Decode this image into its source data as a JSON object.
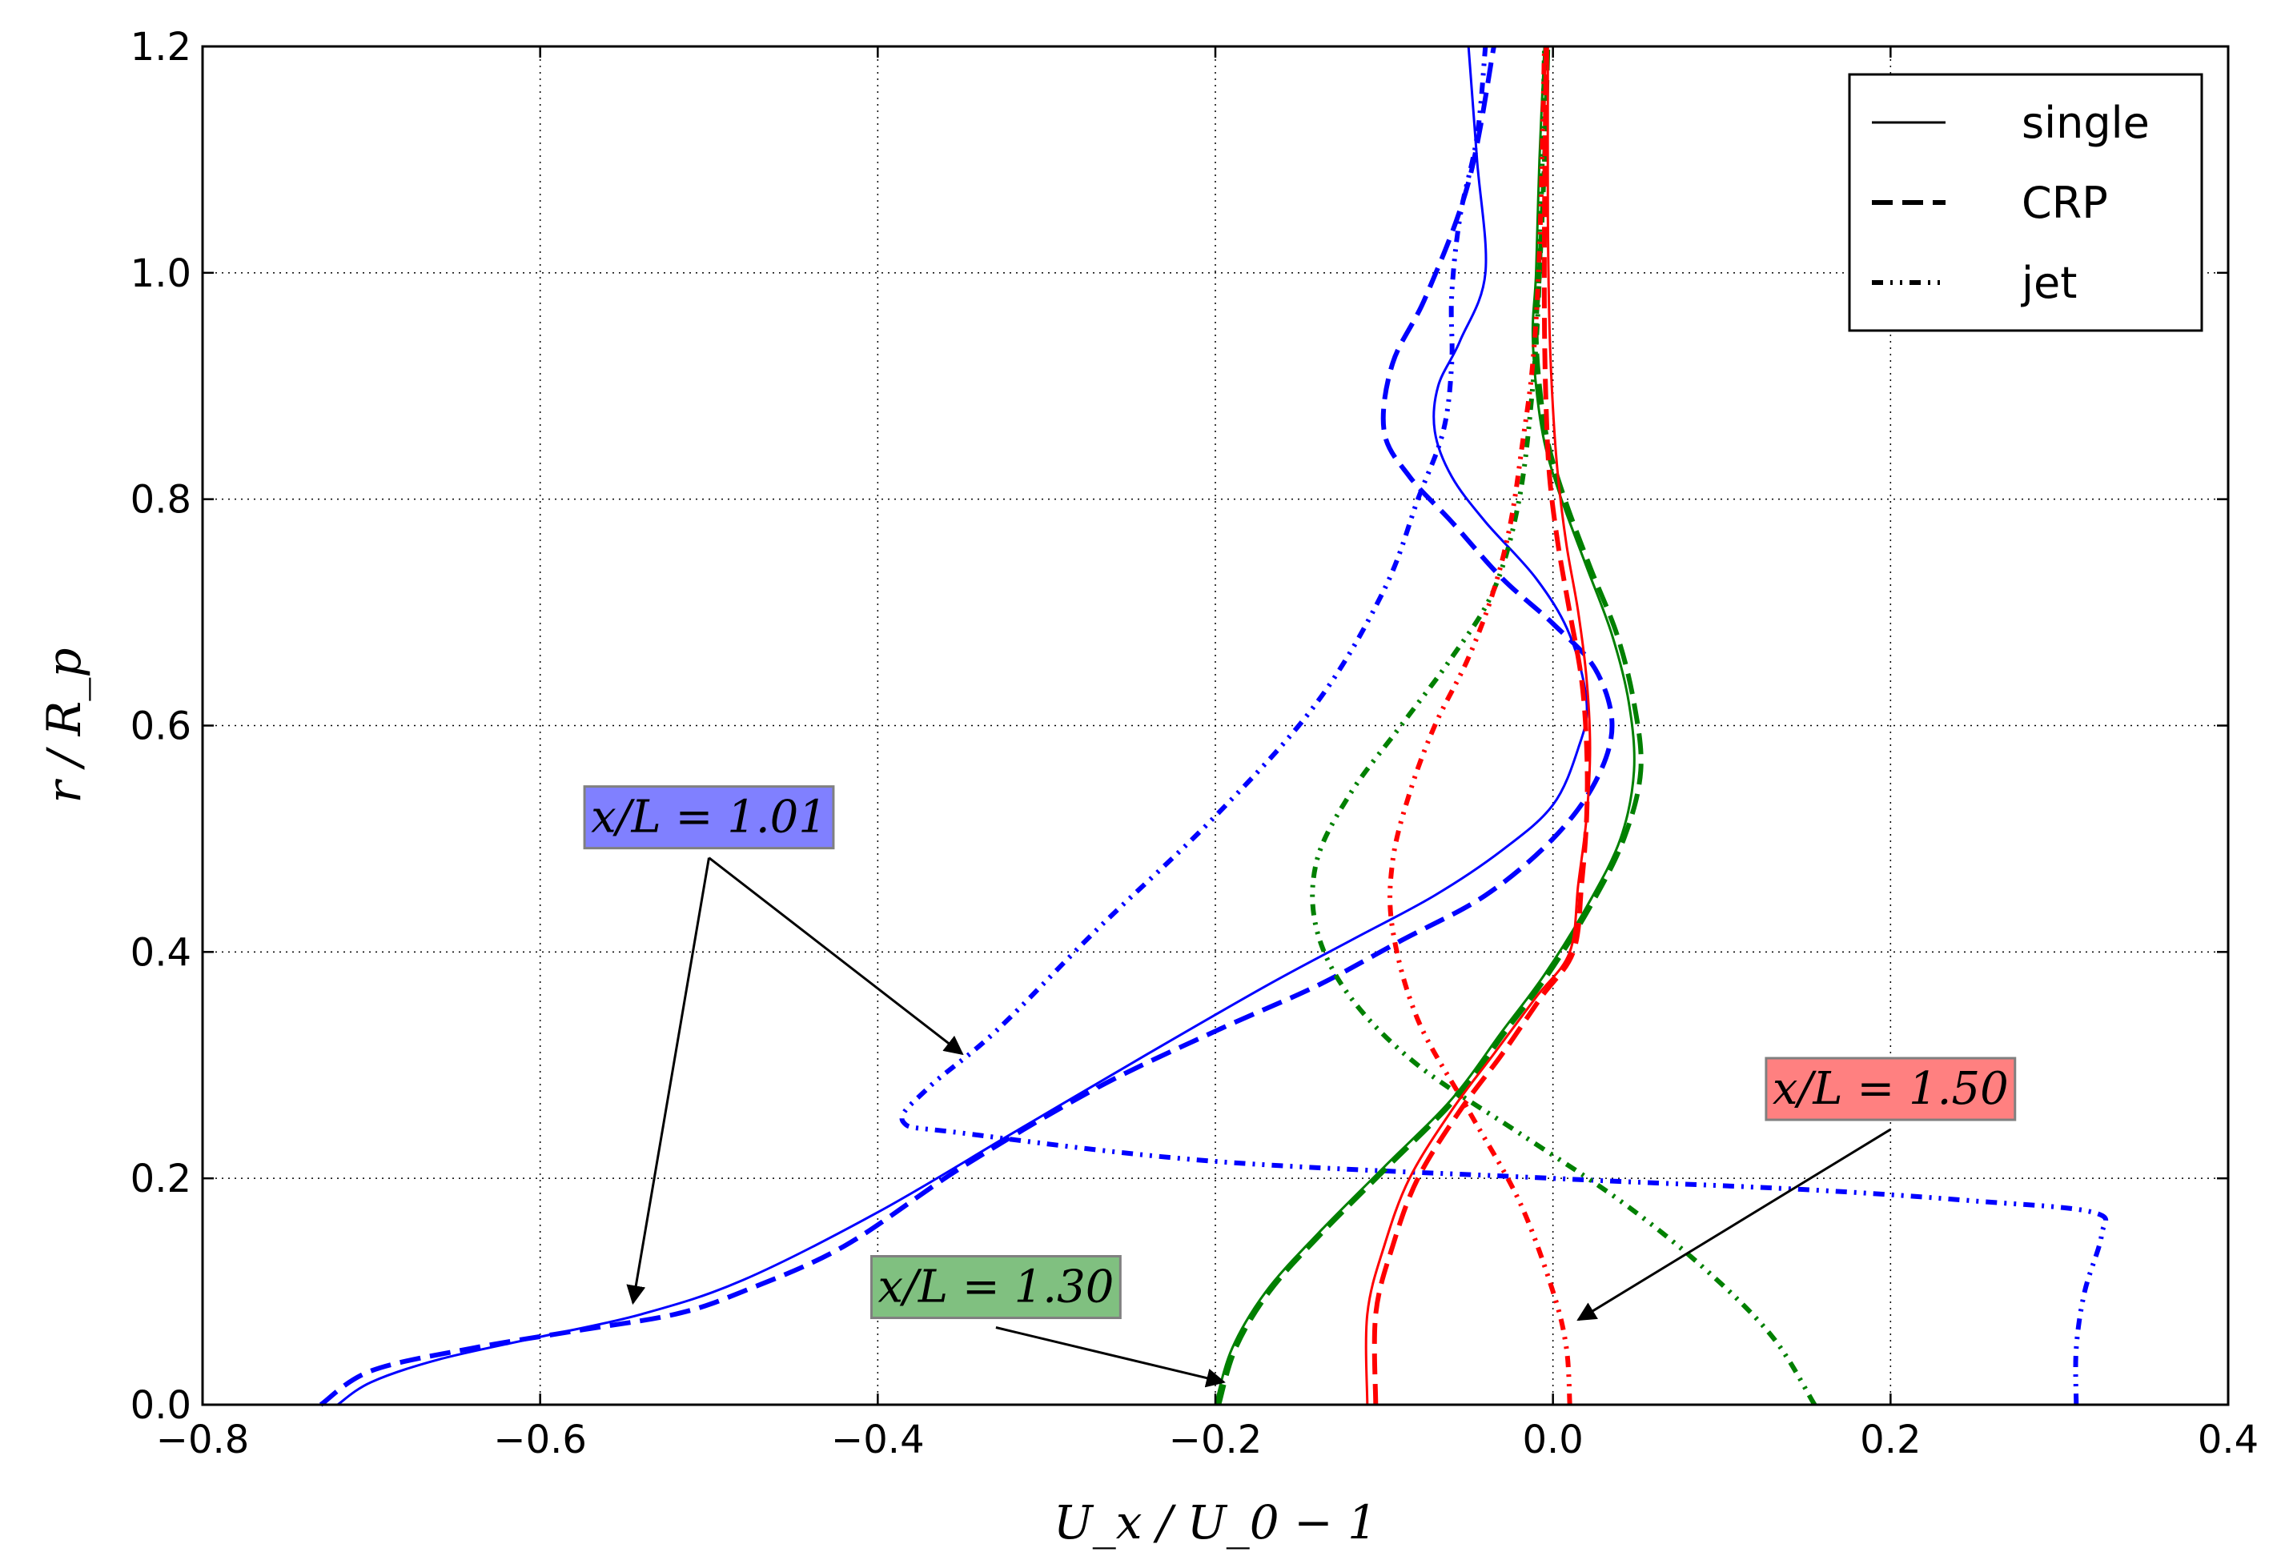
{
  "chart_data": {
    "type": "line",
    "xlabel": "U_x / U_0 − 1",
    "ylabel": "r / R_p",
    "xlim": [
      -0.8,
      0.4
    ],
    "ylim": [
      0.0,
      1.2
    ],
    "grid": true,
    "xticks": [
      -0.8,
      -0.6,
      -0.4,
      -0.2,
      0.0,
      0.2,
      0.4
    ],
    "yticks": [
      0.0,
      0.2,
      0.4,
      0.6,
      0.8,
      1.0,
      1.2
    ],
    "xtick_labels": [
      "−0.8",
      "−0.6",
      "−0.4",
      "−0.2",
      "0.0",
      "0.2",
      "0.4"
    ],
    "ytick_labels": [
      "0.0",
      "0.2",
      "0.4",
      "0.6",
      "0.8",
      "1.0",
      "1.2"
    ],
    "legend": {
      "placement": "top-right",
      "entries": [
        {
          "label": "single",
          "style": "solid"
        },
        {
          "label": "CRP",
          "style": "dashed"
        },
        {
          "label": "jet",
          "style": "dashdot"
        }
      ]
    },
    "annotations": [
      {
        "label": "x/L = 1.01",
        "color": "#8080ff",
        "text_at": [
          -0.5,
          0.52
        ],
        "arrows_to": [
          [
            -0.35,
            0.31
          ],
          [
            -0.545,
            0.09
          ]
        ]
      },
      {
        "label": "x/L = 1.30",
        "color": "#80c080",
        "text_at": [
          -0.33,
          0.105
        ],
        "arrows_to": [
          [
            -0.195,
            0.02
          ]
        ]
      },
      {
        "label": "x/L = 1.50",
        "color": "#ff8080",
        "text_at": [
          0.2,
          0.28
        ],
        "arrows_to": [
          [
            0.015,
            0.075
          ]
        ]
      }
    ],
    "series": [
      {
        "name": "x/L=1.01 single",
        "case": "single",
        "station": "1.01",
        "color": "#0000ff",
        "style": "solid",
        "x": [
          -0.72,
          -0.7,
          -0.66,
          -0.6,
          -0.54,
          -0.48,
          -0.4,
          -0.32,
          -0.24,
          -0.17,
          -0.12,
          -0.07,
          -0.03,
          0.0,
          0.015,
          0.02,
          0.01,
          -0.01,
          -0.04,
          -0.06,
          -0.07,
          -0.068,
          -0.055,
          -0.04,
          -0.045,
          -0.05
        ],
        "y": [
          0.0,
          0.02,
          0.04,
          0.06,
          0.08,
          0.11,
          0.17,
          0.24,
          0.31,
          0.37,
          0.41,
          0.45,
          0.49,
          0.53,
          0.58,
          0.62,
          0.68,
          0.73,
          0.78,
          0.82,
          0.86,
          0.9,
          0.94,
          1.0,
          1.1,
          1.2
        ]
      },
      {
        "name": "x/L=1.01 CRP",
        "case": "CRP",
        "station": "1.01",
        "color": "#0000ff",
        "style": "dashed",
        "x": [
          -0.73,
          -0.7,
          -0.64,
          -0.58,
          -0.52,
          -0.48,
          -0.42,
          -0.35,
          -0.27,
          -0.2,
          -0.14,
          -0.09,
          -0.04,
          0.0,
          0.025,
          0.035,
          0.025,
          0.0,
          -0.03,
          -0.06,
          -0.085,
          -0.1,
          -0.095,
          -0.075,
          -0.05,
          -0.035
        ],
        "y": [
          0.0,
          0.03,
          0.05,
          0.065,
          0.08,
          0.1,
          0.14,
          0.21,
          0.28,
          0.33,
          0.37,
          0.41,
          0.45,
          0.5,
          0.55,
          0.6,
          0.65,
          0.69,
          0.73,
          0.78,
          0.82,
          0.86,
          0.92,
          0.98,
          1.08,
          1.2
        ]
      },
      {
        "name": "x/L=1.01 jet",
        "case": "jet",
        "station": "1.01",
        "color": "#0000ff",
        "style": "dashdot",
        "x": [
          0.31,
          0.31,
          0.315,
          0.325,
          0.32,
          0.25,
          0.15,
          0.0,
          -0.2,
          -0.35,
          -0.385,
          -0.37,
          -0.33,
          -0.27,
          -0.2,
          -0.14,
          -0.1,
          -0.08,
          -0.065,
          -0.06,
          -0.06,
          -0.055,
          -0.045,
          -0.04
        ],
        "y": [
          0.0,
          0.05,
          0.1,
          0.15,
          0.17,
          0.18,
          0.19,
          0.2,
          0.215,
          0.24,
          0.25,
          0.28,
          0.33,
          0.42,
          0.52,
          0.62,
          0.72,
          0.8,
          0.86,
          0.92,
          0.98,
          1.05,
          1.12,
          1.2
        ]
      },
      {
        "name": "x/L=1.30 single",
        "case": "single",
        "station": "1.30",
        "color": "#008000",
        "style": "solid",
        "x": [
          -0.2,
          -0.19,
          -0.17,
          -0.14,
          -0.1,
          -0.06,
          -0.03,
          -0.005,
          0.02,
          0.04,
          0.048,
          0.045,
          0.035,
          0.02,
          0.005,
          -0.005,
          -0.01,
          -0.012,
          -0.01,
          -0.008,
          -0.005
        ],
        "y": [
          0.0,
          0.05,
          0.1,
          0.15,
          0.21,
          0.27,
          0.33,
          0.38,
          0.44,
          0.5,
          0.56,
          0.62,
          0.68,
          0.74,
          0.8,
          0.85,
          0.9,
          0.95,
          1.0,
          1.1,
          1.2
        ]
      },
      {
        "name": "x/L=1.30 CRP",
        "case": "CRP",
        "station": "1.30",
        "color": "#008000",
        "style": "dashed",
        "x": [
          -0.198,
          -0.188,
          -0.168,
          -0.138,
          -0.098,
          -0.058,
          -0.028,
          -0.003,
          0.022,
          0.042,
          0.052,
          0.048,
          0.038,
          0.022,
          0.007,
          -0.003,
          -0.008,
          -0.01,
          -0.008,
          -0.005,
          -0.003
        ],
        "y": [
          0.0,
          0.05,
          0.1,
          0.15,
          0.21,
          0.27,
          0.33,
          0.38,
          0.44,
          0.5,
          0.56,
          0.62,
          0.68,
          0.74,
          0.8,
          0.85,
          0.9,
          0.95,
          1.0,
          1.1,
          1.2
        ]
      },
      {
        "name": "x/L=1.30 jet",
        "case": "jet",
        "station": "1.30",
        "color": "#008000",
        "style": "dashdot",
        "x": [
          0.155,
          0.13,
          0.09,
          0.04,
          -0.02,
          -0.08,
          -0.12,
          -0.14,
          -0.14,
          -0.12,
          -0.09,
          -0.06,
          -0.035,
          -0.02,
          -0.012,
          -0.008,
          -0.005
        ],
        "y": [
          0.0,
          0.06,
          0.12,
          0.18,
          0.24,
          0.3,
          0.36,
          0.42,
          0.48,
          0.54,
          0.6,
          0.66,
          0.72,
          0.8,
          0.9,
          1.0,
          1.2
        ]
      },
      {
        "name": "x/L=1.50 single",
        "case": "single",
        "station": "1.50",
        "color": "#ff0000",
        "style": "solid",
        "x": [
          -0.11,
          -0.11,
          -0.1,
          -0.085,
          -0.06,
          -0.035,
          -0.01,
          0.01,
          0.015,
          0.02,
          0.022,
          0.02,
          0.015,
          0.008,
          0.003,
          0.0,
          -0.002,
          -0.003,
          -0.003
        ],
        "y": [
          0.0,
          0.08,
          0.14,
          0.2,
          0.26,
          0.31,
          0.36,
          0.4,
          0.46,
          0.52,
          0.58,
          0.64,
          0.7,
          0.76,
          0.82,
          0.88,
          0.95,
          1.05,
          1.2
        ]
      },
      {
        "name": "x/L=1.50 CRP",
        "case": "CRP",
        "station": "1.50",
        "color": "#ff0000",
        "style": "dashed",
        "x": [
          -0.105,
          -0.105,
          -0.095,
          -0.08,
          -0.055,
          -0.03,
          -0.007,
          0.012,
          0.017,
          0.02,
          0.02,
          0.017,
          0.01,
          0.003,
          -0.002,
          -0.004,
          -0.005,
          -0.005,
          -0.004
        ],
        "y": [
          0.0,
          0.08,
          0.14,
          0.2,
          0.26,
          0.31,
          0.36,
          0.4,
          0.46,
          0.52,
          0.58,
          0.64,
          0.7,
          0.76,
          0.82,
          0.88,
          0.95,
          1.05,
          1.2
        ]
      },
      {
        "name": "x/L=1.50 jet",
        "case": "jet",
        "station": "1.50",
        "color": "#ff0000",
        "style": "dashdot",
        "x": [
          0.01,
          0.008,
          0.0,
          -0.02,
          -0.05,
          -0.08,
          -0.095,
          -0.095,
          -0.085,
          -0.07,
          -0.05,
          -0.035,
          -0.025,
          -0.018,
          -0.012,
          -0.008,
          -0.005
        ],
        "y": [
          0.0,
          0.05,
          0.1,
          0.18,
          0.26,
          0.34,
          0.42,
          0.48,
          0.54,
          0.6,
          0.66,
          0.72,
          0.78,
          0.85,
          0.92,
          1.02,
          1.2
        ]
      }
    ]
  }
}
